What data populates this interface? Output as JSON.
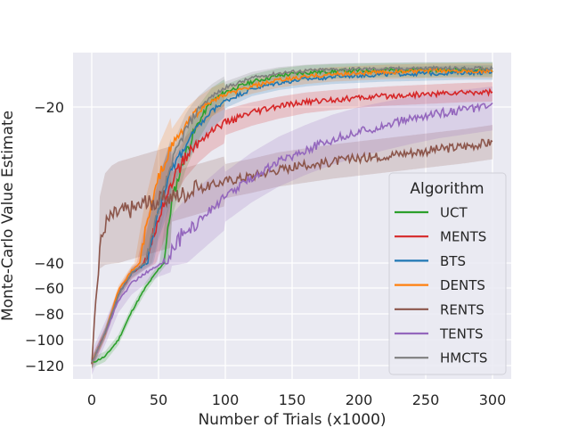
{
  "chart_data": {
    "type": "line",
    "title": "",
    "xlabel": "Number of Trials (x1000)",
    "ylabel": "Monte-Carlo Value Estimate",
    "xlim": [
      -14,
      314
    ],
    "x_ticks": [
      0,
      50,
      100,
      150,
      200,
      250,
      300
    ],
    "x_tick_labels": [
      "0",
      "50",
      "100",
      "150",
      "200",
      "250",
      "300"
    ],
    "y_ticks": [
      -120,
      -100,
      -80,
      -60,
      -40,
      -20
    ],
    "y_tick_labels": [
      "−120",
      "−100",
      "−80",
      "−60",
      "−40",
      "−20"
    ],
    "y_scale": "symlog-like (compressed below -40)",
    "grid": true,
    "legend": {
      "title": "Algorithm",
      "position": "right"
    },
    "series": [
      {
        "name": "UCT",
        "color": "#2ca02c",
        "x": [
          0,
          10,
          20,
          30,
          40,
          50,
          60,
          70,
          80,
          90,
          100,
          120,
          140,
          160,
          180,
          200,
          220,
          240,
          260,
          280,
          300
        ],
        "values": [
          -118,
          -113,
          -100,
          -78,
          -60,
          -45,
          -32,
          -26,
          -22,
          -19,
          -17.5,
          -15.8,
          -14.8,
          -14.3,
          -14.1,
          -14.0,
          -13.9,
          -13.9,
          -13.85,
          -13.8,
          -13.8
        ]
      },
      {
        "name": "MENTS",
        "color": "#d62728",
        "x": [
          0,
          10,
          20,
          30,
          40,
          50,
          60,
          70,
          80,
          90,
          100,
          120,
          140,
          160,
          180,
          200,
          220,
          240,
          260,
          280,
          300
        ],
        "values": [
          -118,
          -95,
          -65,
          -48,
          -40,
          -34,
          -29.5,
          -26.5,
          -24.5,
          -23,
          -22,
          -20.8,
          -19.9,
          -19.2,
          -18.8,
          -18.5,
          -18.2,
          -18.0,
          -17.8,
          -17.6,
          -17.5
        ]
      },
      {
        "name": "BTS",
        "color": "#1f77b4",
        "x": [
          0,
          10,
          20,
          30,
          40,
          50,
          60,
          70,
          80,
          90,
          100,
          120,
          140,
          160,
          180,
          200,
          220,
          240,
          260,
          280,
          300
        ],
        "values": [
          -118,
          -95,
          -65,
          -48,
          -41,
          -33,
          -28,
          -25,
          -22.5,
          -20.5,
          -19,
          -17,
          -16,
          -15.4,
          -15.0,
          -14.8,
          -14.6,
          -14.5,
          -14.4,
          -14.3,
          -14.3
        ]
      },
      {
        "name": "DENTS",
        "color": "#ff7f0e",
        "x": [
          0,
          10,
          20,
          30,
          40,
          50,
          60,
          70,
          80,
          90,
          100,
          120,
          140,
          160,
          180,
          200,
          220,
          240,
          260,
          280,
          300
        ],
        "values": [
          -118,
          -95,
          -62,
          -46,
          -36,
          -29,
          -25,
          -22.5,
          -20.5,
          -19,
          -18,
          -16.6,
          -15.6,
          -15,
          -14.6,
          -14.4,
          -14.2,
          -14.1,
          -14.0,
          -14.0,
          -14.0
        ]
      },
      {
        "name": "RENTS",
        "color": "#8c564b",
        "x": [
          0,
          3,
          6,
          10,
          15,
          20,
          30,
          40,
          50,
          60,
          70,
          80,
          90,
          100,
          120,
          140,
          160,
          180,
          200,
          220,
          240,
          260,
          280,
          300
        ],
        "values": [
          -118,
          -70,
          -38,
          -35,
          -34,
          -33.5,
          -33,
          -32.5,
          -32,
          -31.5,
          -31,
          -30.5,
          -30,
          -29.5,
          -28.8,
          -28,
          -27.5,
          -27,
          -26.6,
          -26.2,
          -25.8,
          -25.4,
          -25,
          -24.5
        ]
      },
      {
        "name": "TENTS",
        "color": "#9467bd",
        "x": [
          0,
          10,
          20,
          30,
          40,
          50,
          60,
          70,
          80,
          90,
          100,
          120,
          140,
          160,
          180,
          200,
          220,
          240,
          260,
          280,
          300
        ],
        "values": [
          -118,
          -95,
          -70,
          -56,
          -48,
          -42,
          -38,
          -36,
          -34.5,
          -33,
          -31.5,
          -29,
          -27,
          -25.5,
          -24.2,
          -23.2,
          -22.3,
          -21.5,
          -20.8,
          -20.3,
          -19.8
        ]
      },
      {
        "name": "HMCTS",
        "color": "#7f7f7f",
        "x": [
          0,
          10,
          20,
          30,
          40,
          50,
          60,
          70,
          80,
          90,
          100,
          120,
          140,
          160,
          180,
          200,
          220,
          240,
          260,
          280,
          300
        ],
        "values": [
          -118,
          -95,
          -65,
          -48,
          -40,
          -33,
          -27,
          -23,
          -20.2,
          -18.2,
          -16.8,
          -15.2,
          -14.4,
          -14.0,
          -13.8,
          -13.7,
          -13.7,
          -13.6,
          -13.6,
          -13.6,
          -13.6
        ]
      }
    ]
  }
}
